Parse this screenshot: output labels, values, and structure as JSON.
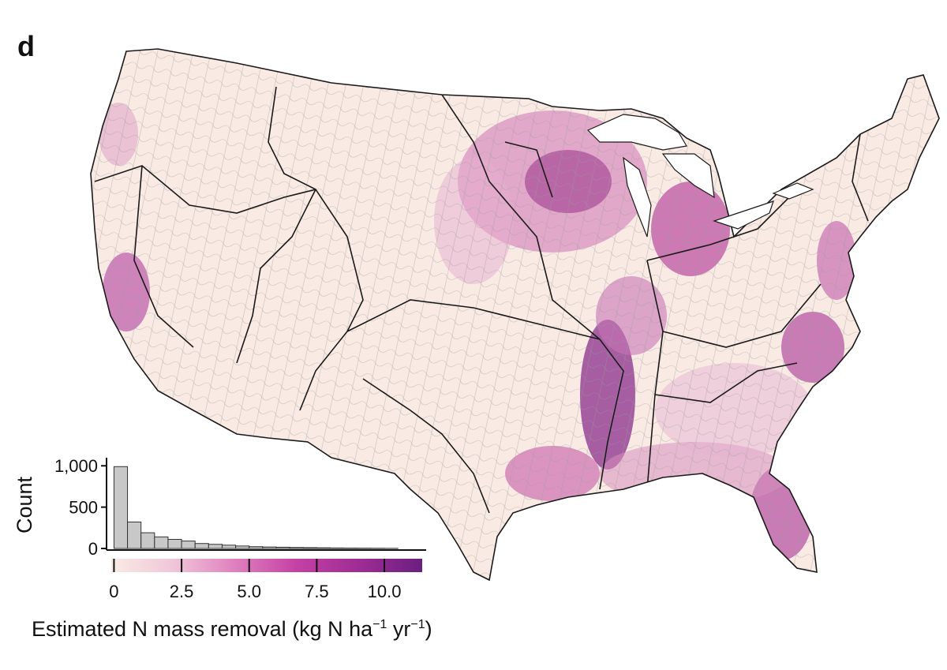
{
  "panel_label": "d",
  "colorscale": {
    "stops": [
      "#f9ebe4",
      "#f0c6d9",
      "#df7fbe",
      "#c440a4",
      "#9e2c94",
      "#6a1f80"
    ],
    "border_color": "#1a1a1a",
    "subbasin_line_color": "#8c8c8c"
  },
  "chart_data": {
    "type": "bar",
    "ylabel": "Count",
    "xlabel": "Estimated N mass removal (kg N ha−1 yr−1)",
    "y_ticks": [
      "0",
      "500",
      "1,000"
    ],
    "y_tick_values": [
      0,
      500,
      1000
    ],
    "x_ticks": [
      "0",
      "2.5",
      "5.0",
      "7.5",
      "10.0"
    ],
    "x_tick_values": [
      0,
      2.5,
      5.0,
      7.5,
      10.0
    ],
    "xlim": [
      -0.1,
      11.4
    ],
    "ylim": [
      0,
      1050
    ],
    "bin_width": 0.5,
    "bin_starts": [
      0,
      0.5,
      1.0,
      1.5,
      2.0,
      2.5,
      3.0,
      3.5,
      4.0,
      4.5,
      5.0,
      5.5,
      6.0,
      6.5,
      7.0,
      7.5,
      8.0,
      8.5,
      9.0,
      9.5,
      10.0
    ],
    "values": [
      990,
      320,
      190,
      140,
      110,
      90,
      60,
      50,
      40,
      30,
      22,
      18,
      15,
      12,
      10,
      8,
      6,
      5,
      4,
      3,
      2
    ]
  },
  "xlabel_parts": {
    "main": "Estimated N mass removal (kg N ha",
    "sup1": "−1",
    "mid": " yr",
    "sup2": "−1",
    "end": ")"
  }
}
